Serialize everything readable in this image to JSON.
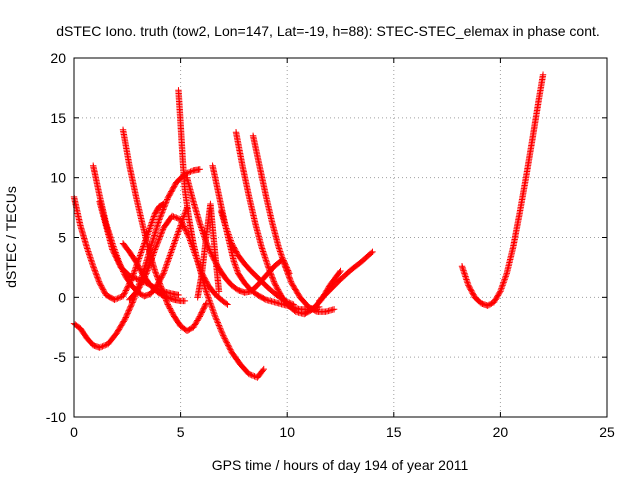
{
  "chart_data": {
    "type": "scatter",
    "title": "dSTEC Iono. truth (tow2, Lon=147, Lat=-19, h=88): STEC-STEC_elemax in phase cont.",
    "xlabel": "GPS time / hours of day 194 of year 2011",
    "ylabel": "dSTEC  / TECUs",
    "xlim": [
      0,
      25
    ],
    "ylim": [
      -10,
      20
    ],
    "xticks": [
      "0",
      "5",
      "10",
      "15",
      "20",
      "25"
    ],
    "yticks": [
      "-10",
      "-5",
      "0",
      "5",
      "10",
      "15",
      "20"
    ],
    "grid": true,
    "marker": "+",
    "colors": {
      "series": "#ff0000",
      "grid": "#a0a0a0",
      "axis": "#000000"
    },
    "series": [
      {
        "x": [
          0.0,
          0.3,
          0.6,
          0.9,
          1.2,
          1.5,
          1.9,
          2.3,
          2.7,
          3.1,
          3.5,
          3.8,
          4.0,
          4.2
        ],
        "y": [
          8.4,
          6.0,
          4.2,
          2.6,
          1.2,
          0.2,
          -0.2,
          0.1,
          1.5,
          3.5,
          5.5,
          7.0,
          7.6,
          7.8
        ]
      },
      {
        "x": [
          0.0,
          0.3,
          0.6,
          0.9,
          1.2,
          1.6,
          2.0,
          2.4,
          2.8,
          3.2,
          3.6,
          4.0,
          4.4,
          4.8,
          5.2,
          5.6,
          5.9
        ],
        "y": [
          -2.2,
          -2.6,
          -3.4,
          -4.0,
          -4.2,
          -3.9,
          -3.0,
          -1.8,
          -0.2,
          1.8,
          4.2,
          6.5,
          8.3,
          9.6,
          10.3,
          10.6,
          10.7
        ]
      },
      {
        "x": [
          0.9,
          1.2,
          1.5,
          1.8,
          2.1,
          2.4,
          2.7,
          3.0,
          3.3,
          3.6,
          3.9,
          4.2,
          4.5,
          4.8,
          5.1,
          5.3
        ],
        "y": [
          11.0,
          8.5,
          6.2,
          4.5,
          3.0,
          1.8,
          1.0,
          0.4,
          0.1,
          0.3,
          1.0,
          2.0,
          3.5,
          5.0,
          6.5,
          7.5
        ]
      },
      {
        "x": [
          1.2,
          1.5,
          1.8,
          2.2,
          2.6,
          3.0,
          3.4,
          3.8,
          4.2,
          4.6,
          4.9
        ],
        "y": [
          8.0,
          6.0,
          4.0,
          2.5,
          1.8,
          1.5,
          1.2,
          0.8,
          0.5,
          0.3,
          0.2
        ]
      },
      {
        "x": [
          2.3,
          2.6,
          2.9,
          3.2,
          3.5,
          3.8,
          4.1,
          4.4,
          4.7,
          5.0,
          5.3,
          5.6,
          5.9,
          6.2
        ],
        "y": [
          14.0,
          11.0,
          8.5,
          6.2,
          4.0,
          2.2,
          0.8,
          -0.6,
          -1.6,
          -2.4,
          -2.8,
          -2.5,
          -1.6,
          -0.5
        ]
      },
      {
        "x": [
          2.3,
          2.6,
          2.9,
          3.2,
          3.5,
          3.8,
          4.1,
          4.4,
          4.7,
          5.0,
          5.2
        ],
        "y": [
          4.5,
          3.8,
          3.0,
          2.0,
          1.2,
          0.6,
          0.2,
          0.0,
          -0.2,
          -0.3,
          -0.3
        ]
      },
      {
        "x": [
          2.6,
          3.0,
          3.4,
          3.8,
          4.2,
          4.6,
          5.0,
          5.4,
          5.8,
          6.2,
          6.6,
          7.0,
          7.4,
          7.8,
          8.2,
          8.6,
          8.9
        ],
        "y": [
          -0.2,
          0.6,
          2.0,
          4.0,
          5.8,
          6.8,
          6.5,
          5.0,
          3.0,
          0.5,
          -1.5,
          -3.2,
          -4.6,
          -5.6,
          -6.4,
          -6.7,
          -6.0
        ]
      },
      {
        "x": [
          4.9,
          5.0,
          5.1,
          5.2,
          5.4,
          5.6,
          5.8,
          6.0,
          6.3,
          6.6,
          6.9,
          7.2
        ],
        "y": [
          17.3,
          14.5,
          11.5,
          9.0,
          6.5,
          4.5,
          3.0,
          2.0,
          1.0,
          0.3,
          -0.2,
          -0.6
        ]
      },
      {
        "x": [
          6.5,
          6.8,
          7.1,
          7.4,
          7.7,
          8.0,
          8.3,
          8.7,
          9.1,
          9.5,
          9.9,
          10.3
        ],
        "y": [
          11.0,
          8.5,
          6.0,
          4.5,
          3.5,
          2.8,
          2.2,
          1.5,
          0.8,
          0.2,
          -0.3,
          -0.6
        ]
      },
      {
        "x": [
          7.6,
          7.9,
          8.2,
          8.5,
          8.8,
          9.1,
          9.4,
          9.7,
          10.0,
          10.4,
          10.8,
          11.2,
          11.6,
          12.0,
          12.5
        ],
        "y": [
          13.8,
          11.0,
          8.5,
          6.2,
          4.2,
          2.6,
          1.2,
          0.2,
          -0.6,
          -1.2,
          -1.4,
          -1.0,
          -0.2,
          1.0,
          2.2
        ]
      },
      {
        "x": [
          8.4,
          8.7,
          9.0,
          9.3,
          9.6,
          9.9,
          10.2,
          10.6,
          11.0,
          11.4,
          11.8,
          12.2
        ],
        "y": [
          13.5,
          11.0,
          8.5,
          6.2,
          4.2,
          2.6,
          1.2,
          0.0,
          -0.8,
          -1.2,
          -1.2,
          -1.0
        ]
      },
      {
        "x": [
          5.3,
          5.6,
          5.9,
          6.2,
          6.5,
          6.8,
          7.1,
          7.4,
          7.7,
          8.0,
          8.3,
          8.6,
          9.0,
          9.4,
          9.8,
          10.1
        ],
        "y": [
          10.0,
          8.0,
          6.2,
          4.6,
          3.4,
          2.4,
          1.6,
          1.0,
          0.6,
          0.4,
          0.5,
          1.0,
          1.8,
          2.6,
          3.2,
          2.0
        ]
      },
      {
        "x": [
          5.8,
          6.0,
          6.2,
          6.4,
          6.6,
          6.8
        ],
        "y": [
          0.0,
          2.0,
          5.0,
          7.8,
          4.0,
          0.5
        ]
      },
      {
        "x": [
          6.9,
          7.1,
          7.3,
          7.5,
          7.7,
          8.0,
          8.3,
          8.6,
          9.0,
          9.4,
          9.8,
          10.2,
          10.6,
          11.0,
          11.5
        ],
        "y": [
          7.2,
          6.0,
          4.5,
          3.0,
          2.0,
          1.2,
          0.6,
          0.2,
          -0.2,
          -0.4,
          -0.6,
          -0.8,
          -1.0,
          -1.0,
          -0.8
        ]
      },
      {
        "x": [
          11.5,
          12.0,
          12.5,
          13.0,
          13.5,
          14.0
        ],
        "y": [
          -0.3,
          0.6,
          1.5,
          2.3,
          3.0,
          3.8
        ]
      },
      {
        "x": [
          18.2,
          18.5,
          18.8,
          19.1,
          19.4,
          19.7,
          20.0,
          20.3,
          20.6,
          20.9,
          21.2,
          21.5,
          21.8,
          22.0
        ],
        "y": [
          2.6,
          1.0,
          0.0,
          -0.5,
          -0.7,
          -0.4,
          0.5,
          2.0,
          4.2,
          7.0,
          10.0,
          13.2,
          16.5,
          18.6
        ]
      }
    ]
  }
}
